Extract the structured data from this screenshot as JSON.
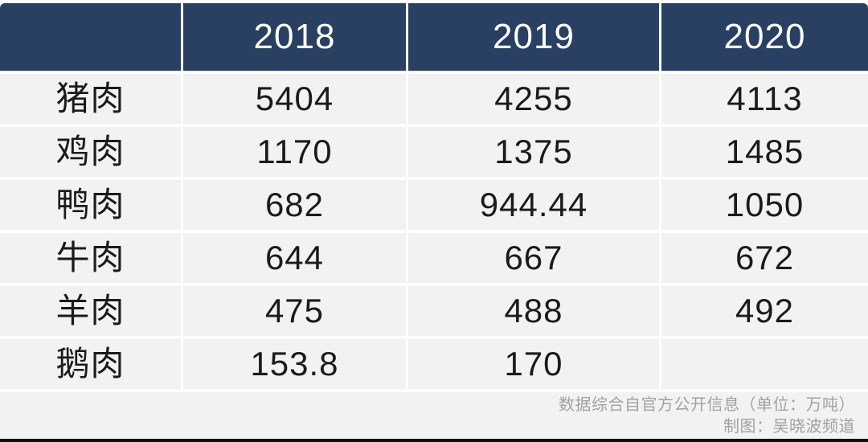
{
  "table": {
    "columns": [
      "",
      "2018",
      "2019",
      "2020"
    ],
    "rows": [
      {
        "label": "猪肉",
        "values": [
          "5404",
          "4255",
          "4113"
        ]
      },
      {
        "label": "鸡肉",
        "values": [
          "1170",
          "1375",
          "1485"
        ]
      },
      {
        "label": "鸭肉",
        "values": [
          "682",
          "944.44",
          "1050"
        ]
      },
      {
        "label": "牛肉",
        "values": [
          "644",
          "667",
          "672"
        ]
      },
      {
        "label": "羊肉",
        "values": [
          "475",
          "488",
          "492"
        ]
      },
      {
        "label": "鹅肉",
        "values": [
          "153.8",
          "170",
          ""
        ]
      }
    ]
  },
  "footer": {
    "source_note": "数据综合自官方公开信息（单位：万吨）",
    "credit": "制图：吴晓波频道"
  },
  "colors": {
    "header_bg": "#294062",
    "header_text": "#ffffff",
    "row_bg": "#f2f2f3",
    "gutter": "#ffffff",
    "cell_text": "#1b1b1b",
    "footer_bg": "#f2f2f2",
    "footer_text": "#a2a2a2",
    "bottom_line": "#0d0d0d"
  },
  "chart_data": {
    "type": "table",
    "title": "",
    "categories": [
      "2018",
      "2019",
      "2020"
    ],
    "series": [
      {
        "name": "猪肉",
        "values": [
          5404,
          4255,
          4113
        ]
      },
      {
        "name": "鸡肉",
        "values": [
          1170,
          1375,
          1485
        ]
      },
      {
        "name": "鸭肉",
        "values": [
          682,
          944.44,
          1050
        ]
      },
      {
        "name": "牛肉",
        "values": [
          644,
          667,
          672
        ]
      },
      {
        "name": "羊肉",
        "values": [
          475,
          488,
          492
        ]
      },
      {
        "name": "鹅肉",
        "values": [
          153.8,
          170,
          null
        ]
      }
    ],
    "unit": "万吨",
    "source": "数据综合自官方公开信息",
    "credit": "制图：吴晓波频道"
  }
}
